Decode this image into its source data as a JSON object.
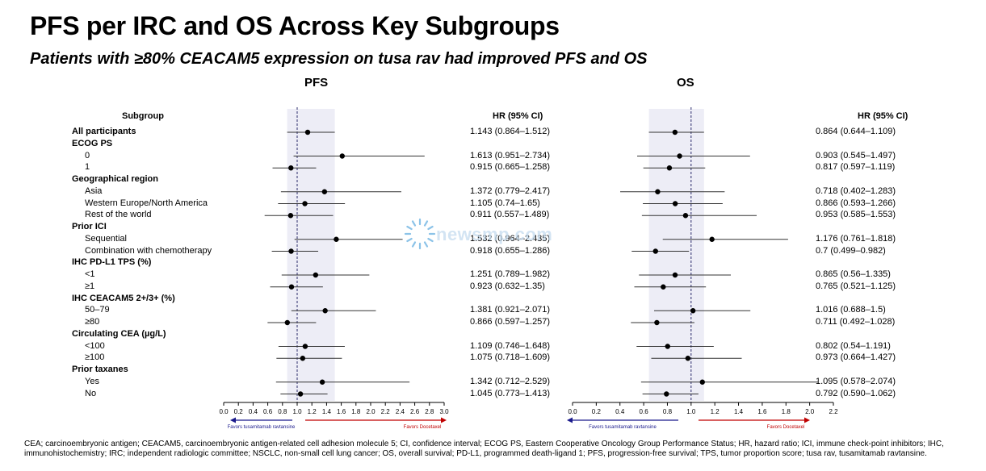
{
  "header": {
    "title": "PFS per IRC and OS Across Key Subgroups",
    "subtitle": "Patients with ≥80% CEACAM5 expression on tusa rav had improved PFS and OS"
  },
  "table": {
    "subgroup_header": "Subgroup",
    "rows": [
      {
        "label": "All participants",
        "bold": true,
        "indent": false
      },
      {
        "label": "ECOG PS",
        "bold": true,
        "indent": false
      },
      {
        "label": "0",
        "bold": false,
        "indent": true
      },
      {
        "label": "1",
        "bold": false,
        "indent": true
      },
      {
        "label": "Geographical region",
        "bold": true,
        "indent": false
      },
      {
        "label": "Asia",
        "bold": false,
        "indent": true
      },
      {
        "label": "Western Europe/North America",
        "bold": false,
        "indent": true
      },
      {
        "label": "Rest of the world",
        "bold": false,
        "indent": true
      },
      {
        "label": "Prior ICI",
        "bold": true,
        "indent": false
      },
      {
        "label": "Sequential",
        "bold": false,
        "indent": true
      },
      {
        "label": "Combination with chemotherapy",
        "bold": false,
        "indent": true
      },
      {
        "label": "IHC PD-L1 TPS (%)",
        "bold": true,
        "indent": false
      },
      {
        "label": "<1",
        "bold": false,
        "indent": true
      },
      {
        "label": "≥1",
        "bold": false,
        "indent": true
      },
      {
        "label": "IHC CEACAM5 2+/3+ (%)",
        "bold": true,
        "indent": false
      },
      {
        "label": "50–79",
        "bold": false,
        "indent": true
      },
      {
        "label": "≥80",
        "bold": false,
        "indent": true
      },
      {
        "label": "Circulating CEA (µg/L)",
        "bold": true,
        "indent": false
      },
      {
        "label": "<100",
        "bold": false,
        "indent": true
      },
      {
        "label": "≥100",
        "bold": false,
        "indent": true
      },
      {
        "label": "Prior taxanes",
        "bold": true,
        "indent": false
      },
      {
        "label": "Yes",
        "bold": false,
        "indent": true
      },
      {
        "label": "No",
        "bold": false,
        "indent": true
      }
    ]
  },
  "watermark": "newsmp.com",
  "footnote": "CEA; carcinoembryonic antigen; CEACAM5, carcinoembryonic antigen-related cell adhesion molecule 5; CI, confidence interval; ECOG PS, Eastern Cooperative Oncology Group Performance Status; HR, hazard ratio; ICI, immune check-point inhibitors; IHC, immunohistochemistry; IRC; independent radiologic committee; NSCLC, non-small cell lung cancer; OS, overall survival; PD-L1, programmed death-ligand 1; PFS, progression-free survival; TPS, tumor proportion score; tusa rav, tusamitamab ravtansine.",
  "colors": {
    "favors_left_arrow": "#1a1a8c",
    "favors_right_arrow": "#c00000",
    "ci_band": "#e6e6f2",
    "reference_line": "#2a2a6a"
  },
  "chart_data": [
    {
      "type": "forest",
      "title": "PFS",
      "hr_header": "HR (95% CI)",
      "xlim": [
        0.0,
        3.0
      ],
      "ticks": [
        "0.0",
        "0.2",
        "0.4",
        "0.6",
        "0.8",
        "1.0",
        "1.2",
        "1.4",
        "1.6",
        "1.8",
        "2.0",
        "2.2",
        "2.4",
        "2.6",
        "2.8",
        "3.0"
      ],
      "reference": 1.0,
      "overall_band": [
        0.864,
        1.512
      ],
      "favors_left": "Favors tusamitamab ravtansine",
      "favors_right": "Favors Docetaxel",
      "rows": [
        {
          "row": 0,
          "hr": 1.143,
          "lo": 0.864,
          "hi": 1.512,
          "text": "1.143 (0.864–1.512)"
        },
        {
          "row": 2,
          "hr": 1.613,
          "lo": 0.951,
          "hi": 2.734,
          "text": "1.613 (0.951–2.734)"
        },
        {
          "row": 3,
          "hr": 0.915,
          "lo": 0.665,
          "hi": 1.258,
          "text": "0.915 (0.665–1.258)"
        },
        {
          "row": 5,
          "hr": 1.372,
          "lo": 0.779,
          "hi": 2.417,
          "text": "1.372 (0.779–2.417)"
        },
        {
          "row": 6,
          "hr": 1.105,
          "lo": 0.74,
          "hi": 1.65,
          "text": "1.105 (0.74–1.65)"
        },
        {
          "row": 7,
          "hr": 0.911,
          "lo": 0.557,
          "hi": 1.489,
          "text": "0.911 (0.557–1.489)"
        },
        {
          "row": 9,
          "hr": 1.532,
          "lo": 0.964,
          "hi": 2.435,
          "text": "1.532 (0.964–2.435)"
        },
        {
          "row": 10,
          "hr": 0.918,
          "lo": 0.655,
          "hi": 1.286,
          "text": "0.918 (0.655–1.286)"
        },
        {
          "row": 12,
          "hr": 1.251,
          "lo": 0.789,
          "hi": 1.982,
          "text": "1.251 (0.789–1.982)"
        },
        {
          "row": 13,
          "hr": 0.923,
          "lo": 0.632,
          "hi": 1.35,
          "text": "0.923 (0.632–1.35)"
        },
        {
          "row": 15,
          "hr": 1.381,
          "lo": 0.921,
          "hi": 2.071,
          "text": "1.381 (0.921–2.071)"
        },
        {
          "row": 16,
          "hr": 0.866,
          "lo": 0.597,
          "hi": 1.257,
          "text": "0.866 (0.597–1.257)"
        },
        {
          "row": 18,
          "hr": 1.109,
          "lo": 0.746,
          "hi": 1.648,
          "text": "1.109 (0.746–1.648)"
        },
        {
          "row": 19,
          "hr": 1.075,
          "lo": 0.718,
          "hi": 1.609,
          "text": "1.075 (0.718–1.609)"
        },
        {
          "row": 21,
          "hr": 1.342,
          "lo": 0.712,
          "hi": 2.529,
          "text": "1.342 (0.712–2.529)"
        },
        {
          "row": 22,
          "hr": 1.045,
          "lo": 0.773,
          "hi": 1.413,
          "text": "1.045 (0.773–1.413)"
        }
      ]
    },
    {
      "type": "forest",
      "title": "OS",
      "hr_header": "HR (95% CI)",
      "xlim": [
        0.0,
        2.2
      ],
      "ticks": [
        "0.0",
        "0.2",
        "0.4",
        "0.6",
        "0.8",
        "1.0",
        "1.2",
        "1.4",
        "1.6",
        "1.8",
        "2.0",
        "2.2"
      ],
      "reference": 1.0,
      "overall_band": [
        0.644,
        1.109
      ],
      "favors_left": "Favors tusamitamab ravtansine",
      "favors_right": "Favors Docetaxel",
      "rows": [
        {
          "row": 0,
          "hr": 0.864,
          "lo": 0.644,
          "hi": 1.109,
          "text": "0.864 (0.644–1.109)"
        },
        {
          "row": 2,
          "hr": 0.903,
          "lo": 0.545,
          "hi": 1.497,
          "text": "0.903 (0.545–1.497)"
        },
        {
          "row": 3,
          "hr": 0.817,
          "lo": 0.597,
          "hi": 1.119,
          "text": "0.817 (0.597–1.119)"
        },
        {
          "row": 5,
          "hr": 0.718,
          "lo": 0.402,
          "hi": 1.283,
          "text": "0.718 (0.402–1.283)"
        },
        {
          "row": 6,
          "hr": 0.866,
          "lo": 0.593,
          "hi": 1.266,
          "text": "0.866 (0.593–1.266)"
        },
        {
          "row": 7,
          "hr": 0.953,
          "lo": 0.585,
          "hi": 1.553,
          "text": "0.953 (0.585–1.553)"
        },
        {
          "row": 9,
          "hr": 1.176,
          "lo": 0.761,
          "hi": 1.818,
          "text": "1.176 (0.761–1.818)"
        },
        {
          "row": 10,
          "hr": 0.7,
          "lo": 0.499,
          "hi": 0.982,
          "text": "0.7 (0.499–0.982)"
        },
        {
          "row": 12,
          "hr": 0.865,
          "lo": 0.56,
          "hi": 1.335,
          "text": "0.865 (0.56–1.335)"
        },
        {
          "row": 13,
          "hr": 0.765,
          "lo": 0.521,
          "hi": 1.125,
          "text": "0.765 (0.521–1.125)"
        },
        {
          "row": 15,
          "hr": 1.016,
          "lo": 0.688,
          "hi": 1.5,
          "text": "1.016 (0.688–1.5)"
        },
        {
          "row": 16,
          "hr": 0.711,
          "lo": 0.492,
          "hi": 1.028,
          "text": "0.711 (0.492–1.028)"
        },
        {
          "row": 18,
          "hr": 0.802,
          "lo": 0.54,
          "hi": 1.191,
          "text": "0.802 (0.54–1.191)"
        },
        {
          "row": 19,
          "hr": 0.973,
          "lo": 0.664,
          "hi": 1.427,
          "text": "0.973 (0.664–1.427)"
        },
        {
          "row": 21,
          "hr": 1.095,
          "lo": 0.578,
          "hi": 2.074,
          "text": "1.095 (0.578–2.074)"
        },
        {
          "row": 22,
          "hr": 0.792,
          "lo": 0.59,
          "hi": 1.062,
          "text": "0.792 (0.590–1.062)"
        }
      ]
    }
  ]
}
